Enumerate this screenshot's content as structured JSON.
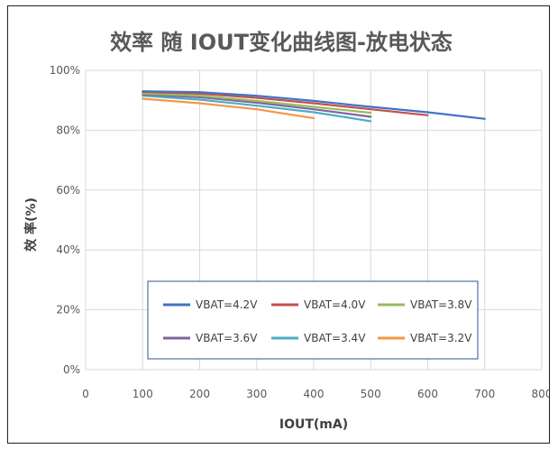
{
  "chart_data": {
    "type": "line",
    "title": "效率 随 IOUT变化曲线图-放电状态",
    "xlabel": "IOUT(mA)",
    "ylabel": "效 率(%)",
    "xlim": [
      0,
      800
    ],
    "ylim": [
      0,
      100
    ],
    "xticks": [
      0,
      100,
      200,
      300,
      400,
      500,
      600,
      700,
      800
    ],
    "yticks": [
      0,
      20,
      40,
      60,
      80,
      100
    ],
    "xtick_labels": [
      "0",
      "100",
      "200",
      "300",
      "400",
      "500",
      "600",
      "700",
      "800"
    ],
    "ytick_labels": [
      "0%",
      "20%",
      "40%",
      "60%",
      "80%",
      "100%"
    ],
    "grid": true,
    "legend_position": "bottom-center",
    "series": [
      {
        "name": "VBAT=4.2V",
        "color": "#4472C4",
        "x": [
          100,
          200,
          300,
          400,
          500,
          600,
          700
        ],
        "y": [
          93.0,
          92.7,
          91.5,
          89.8,
          87.8,
          86.0,
          83.8
        ]
      },
      {
        "name": "VBAT=4.0V",
        "color": "#C0504D",
        "x": [
          100,
          200,
          300,
          400,
          500,
          600
        ],
        "y": [
          92.8,
          92.2,
          90.8,
          89.0,
          87.0,
          85.0
        ]
      },
      {
        "name": "VBAT=3.8V",
        "color": "#9BBB59",
        "x": [
          100,
          200,
          300,
          400,
          500
        ],
        "y": [
          92.3,
          91.5,
          89.8,
          87.8,
          85.8
        ]
      },
      {
        "name": "VBAT=3.6V",
        "color": "#8064A2",
        "x": [
          100,
          200,
          300,
          400,
          500
        ],
        "y": [
          92.0,
          91.0,
          89.2,
          87.0,
          84.5
        ]
      },
      {
        "name": "VBAT=3.4V",
        "color": "#4BACC6",
        "x": [
          100,
          200,
          300,
          400,
          500
        ],
        "y": [
          91.5,
          90.2,
          88.2,
          86.0,
          83.0
        ]
      },
      {
        "name": "VBAT=3.2V",
        "color": "#F79646",
        "x": [
          100,
          200,
          300,
          400
        ],
        "y": [
          90.5,
          89.0,
          87.0,
          84.0
        ]
      }
    ]
  }
}
